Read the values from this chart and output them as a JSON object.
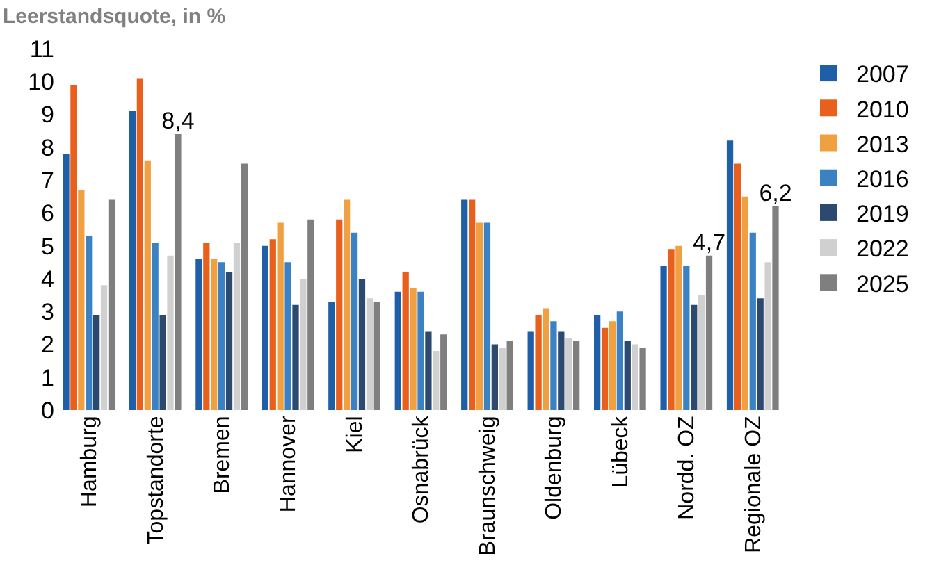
{
  "chart_data": {
    "type": "bar",
    "title": "Leerstandsquote, in %",
    "categories": [
      "Hamburg",
      "Topstandorte",
      "Bremen",
      "Hannover",
      "Kiel",
      "Osnabrück",
      "Braunschweig",
      "Oldenburg",
      "Lübeck",
      "Nordd. OZ",
      "Regionale OZ"
    ],
    "series": [
      {
        "name": "2007",
        "color": "#1f5fa8",
        "values": [
          7.8,
          9.1,
          4.6,
          5.0,
          3.3,
          3.6,
          6.4,
          2.4,
          2.9,
          4.4,
          8.2
        ]
      },
      {
        "name": "2010",
        "color": "#e8601c",
        "values": [
          9.9,
          10.1,
          5.1,
          5.2,
          5.8,
          4.2,
          6.4,
          2.9,
          2.5,
          4.9,
          7.5
        ]
      },
      {
        "name": "2013",
        "color": "#f0a040",
        "values": [
          6.7,
          7.6,
          4.6,
          5.7,
          6.4,
          3.7,
          5.7,
          3.1,
          2.7,
          5.0,
          6.5
        ]
      },
      {
        "name": "2016",
        "color": "#3a82c4",
        "values": [
          5.3,
          5.1,
          4.5,
          4.5,
          5.4,
          3.6,
          5.7,
          2.7,
          3.0,
          4.4,
          5.4
        ]
      },
      {
        "name": "2019",
        "color": "#2c4a70",
        "values": [
          2.9,
          2.9,
          4.2,
          3.2,
          4.0,
          2.4,
          2.0,
          2.4,
          2.1,
          3.2,
          3.4
        ]
      },
      {
        "name": "2022",
        "color": "#d0d0d0",
        "values": [
          3.8,
          4.7,
          5.1,
          4.0,
          3.4,
          1.8,
          1.9,
          2.2,
          2.0,
          3.5,
          4.5
        ]
      },
      {
        "name": "2025",
        "color": "#7f7f7f",
        "values": [
          6.4,
          8.4,
          7.5,
          5.8,
          3.3,
          2.3,
          2.1,
          2.1,
          1.9,
          4.7,
          6.2
        ],
        "value_labels": [
          null,
          "8,4",
          null,
          null,
          null,
          null,
          null,
          null,
          null,
          "4,7",
          "6,2"
        ]
      }
    ],
    "ylim": [
      0,
      11
    ],
    "yticks": [
      0,
      1,
      2,
      3,
      4,
      5,
      6,
      7,
      8,
      9,
      10,
      11
    ],
    "grid": false,
    "legend": "right"
  }
}
